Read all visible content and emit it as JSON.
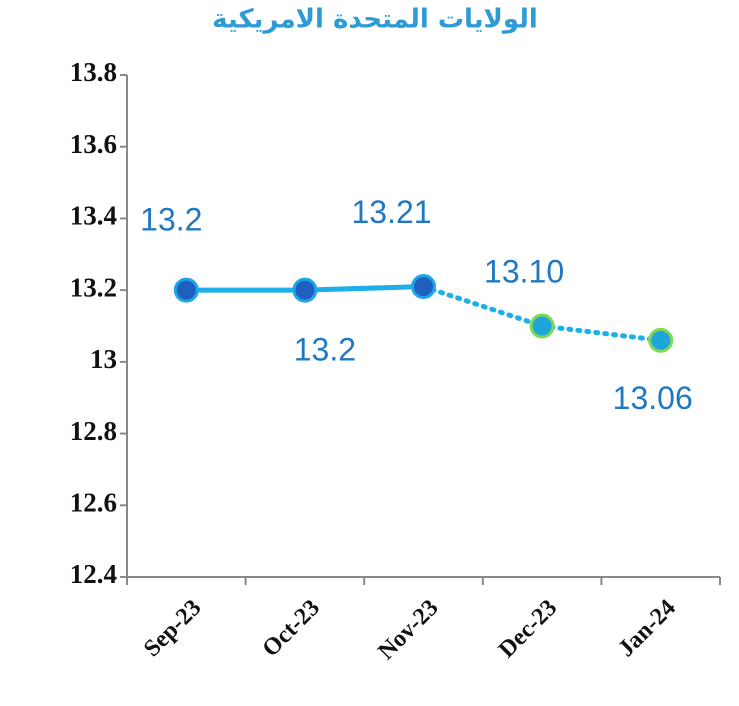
{
  "chart_data": {
    "type": "line",
    "title": "الولايات المتحدة الامريكية",
    "categories": [
      "Sep-23",
      "Oct-23",
      "Nov-23",
      "Dec-23",
      "Jan-24"
    ],
    "values": [
      13.2,
      13.2,
      13.21,
      13.1,
      13.06
    ],
    "value_labels": [
      "13.2",
      "13.2",
      "13.21",
      "13.10",
      "13.06"
    ],
    "color": "#1eaee8",
    "segment_styles": [
      "solid",
      "solid",
      "dotted",
      "dotted"
    ],
    "marker_colors": [
      "#1f5fbf",
      "#1f5fbf",
      "#1f5fbf",
      "#1ea6d8",
      "#1ea6d8"
    ],
    "ylim": [
      12.4,
      13.8
    ],
    "yticks": [
      12.4,
      12.6,
      12.8,
      13,
      13.2,
      13.4,
      13.6,
      13.8
    ],
    "grid": false
  }
}
